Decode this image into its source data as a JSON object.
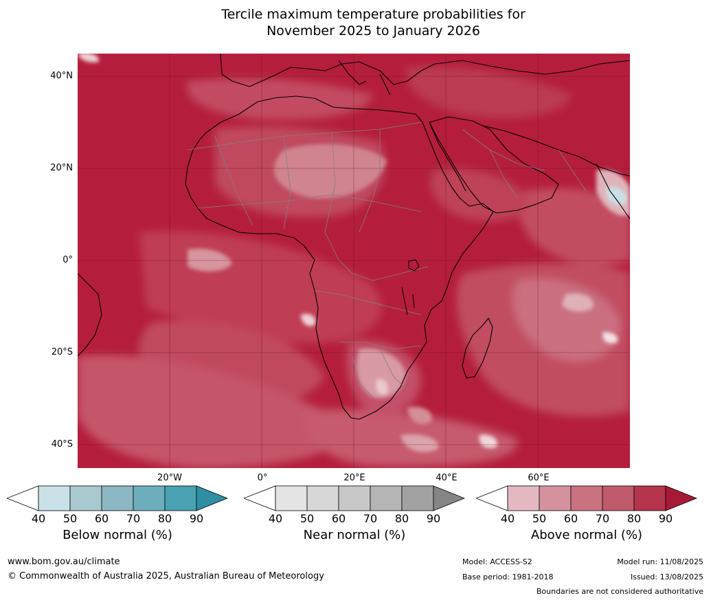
{
  "title": {
    "line1": "Tercile maximum temperature probabilities for",
    "line2": "November 2025 to January 2026"
  },
  "map": {
    "lat_labels": [
      "40°N",
      "20°N",
      "0°",
      "20°S",
      "40°S"
    ],
    "lon_labels": [
      "20°W",
      "0°",
      "20°E",
      "40°E",
      "60°E"
    ],
    "dominant_category": "Above normal",
    "colors": {
      "ocean_land_fill": "#b41e3c",
      "coastline": "#000000",
      "boundaries": "#808080"
    }
  },
  "legends": [
    {
      "title": "Below normal (%)",
      "ticks": [
        "40",
        "50",
        "60",
        "70",
        "80",
        "90"
      ],
      "colors": [
        "#ffffff",
        "#c9e1e7",
        "#a9c9cf",
        "#8bb8c3",
        "#6daebd",
        "#4aa1b2",
        "#2e8fa3"
      ]
    },
    {
      "title": "Near normal (%)",
      "ticks": [
        "40",
        "50",
        "60",
        "70",
        "80",
        "90"
      ],
      "colors": [
        "#ffffff",
        "#e5e5e5",
        "#d7d7d7",
        "#c8c8c8",
        "#b5b5b5",
        "#a2a2a2",
        "#858585"
      ]
    },
    {
      "title": "Above normal (%)",
      "ticks": [
        "40",
        "50",
        "60",
        "70",
        "80",
        "90"
      ],
      "colors": [
        "#ffffff",
        "#e3b8c0",
        "#d4929e",
        "#c97380",
        "#bf5a6b",
        "#b3344b",
        "#a71a35"
      ]
    }
  ],
  "footer": {
    "website": "www.bom.gov.au/climate",
    "copyright": "© Commonwealth of Australia 2025, Australian Bureau of Meteorology",
    "model": "Model: ACCESS-S2",
    "base_period": "Base period: 1981-2018",
    "model_run": "Model run: 11/08/2025",
    "issued": "Issued: 13/08/2025",
    "disclaimer": "Boundaries are not considered authoritative"
  }
}
